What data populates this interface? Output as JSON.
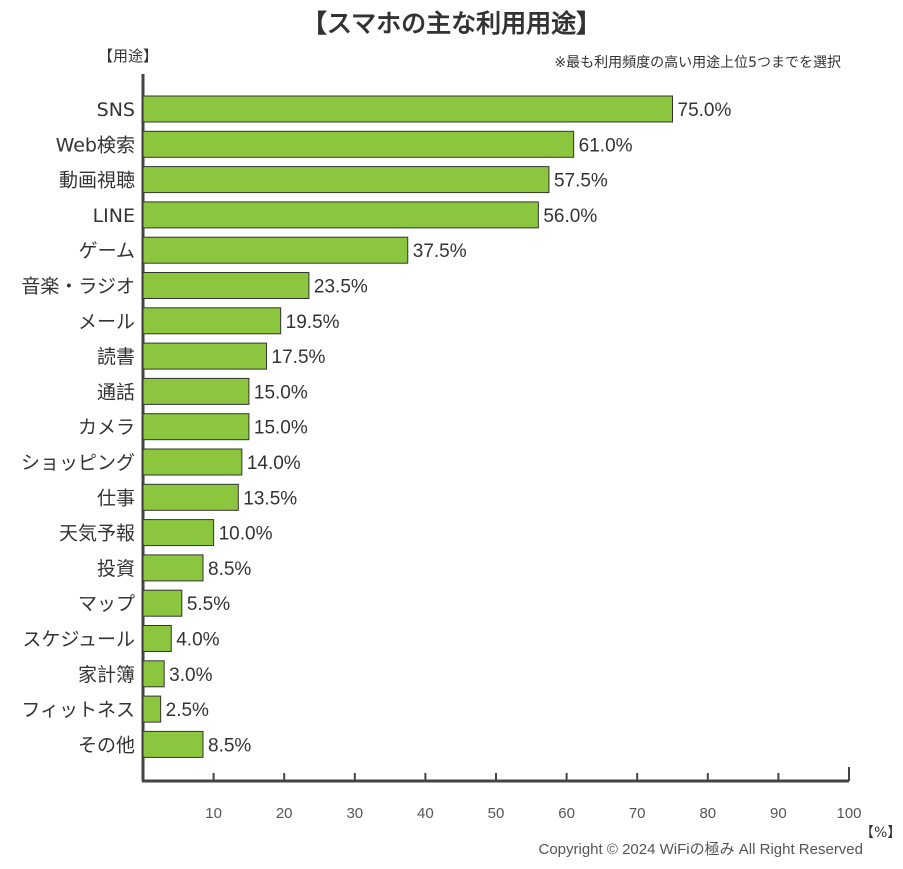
{
  "title": "【スマホの主な利用用途】",
  "y_unit_label": "【用途】",
  "note": "※最も利用頻度の高い用途上位5つまでを選択",
  "x_unit_label": "【%】",
  "copyright": "Copyright © 2024 WiFiの極み All Right Reserved",
  "colors": {
    "bar_fill": "#8cc63f",
    "bar_stroke": "#333333",
    "axis": "#444444",
    "text": "#333333"
  },
  "chart_data": {
    "type": "bar",
    "orientation": "horizontal",
    "title": "【スマホの主な利用用途】",
    "xlabel": "【%】",
    "ylabel": "【用途】",
    "xlim": [
      0,
      100
    ],
    "x_ticks": [
      10,
      20,
      30,
      40,
      50,
      60,
      70,
      80,
      90,
      100
    ],
    "grid": false,
    "categories": [
      "SNS",
      "Web検索",
      "動画視聴",
      "LINE",
      "ゲーム",
      "音楽・ラジオ",
      "メール",
      "読書",
      "通話",
      "カメラ",
      "ショッピング",
      "仕事",
      "天気予報",
      "投資",
      "マップ",
      "スケジュール",
      "家計簿",
      "フィットネス",
      "その他"
    ],
    "values": [
      75.0,
      61.0,
      57.5,
      56.0,
      37.5,
      23.5,
      19.5,
      17.5,
      15.0,
      15.0,
      14.0,
      13.5,
      10.0,
      8.5,
      5.5,
      4.0,
      3.0,
      2.5,
      8.5
    ],
    "data_labels": [
      "75.0%",
      "61.0%",
      "57.5%",
      "56.0%",
      "37.5%",
      "23.5%",
      "19.5%",
      "17.5%",
      "15.0%",
      "15.0%",
      "14.0%",
      "13.5%",
      "10.0%",
      "8.5%",
      "5.5%",
      "4.0%",
      "3.0%",
      "2.5%",
      "8.5%"
    ]
  }
}
